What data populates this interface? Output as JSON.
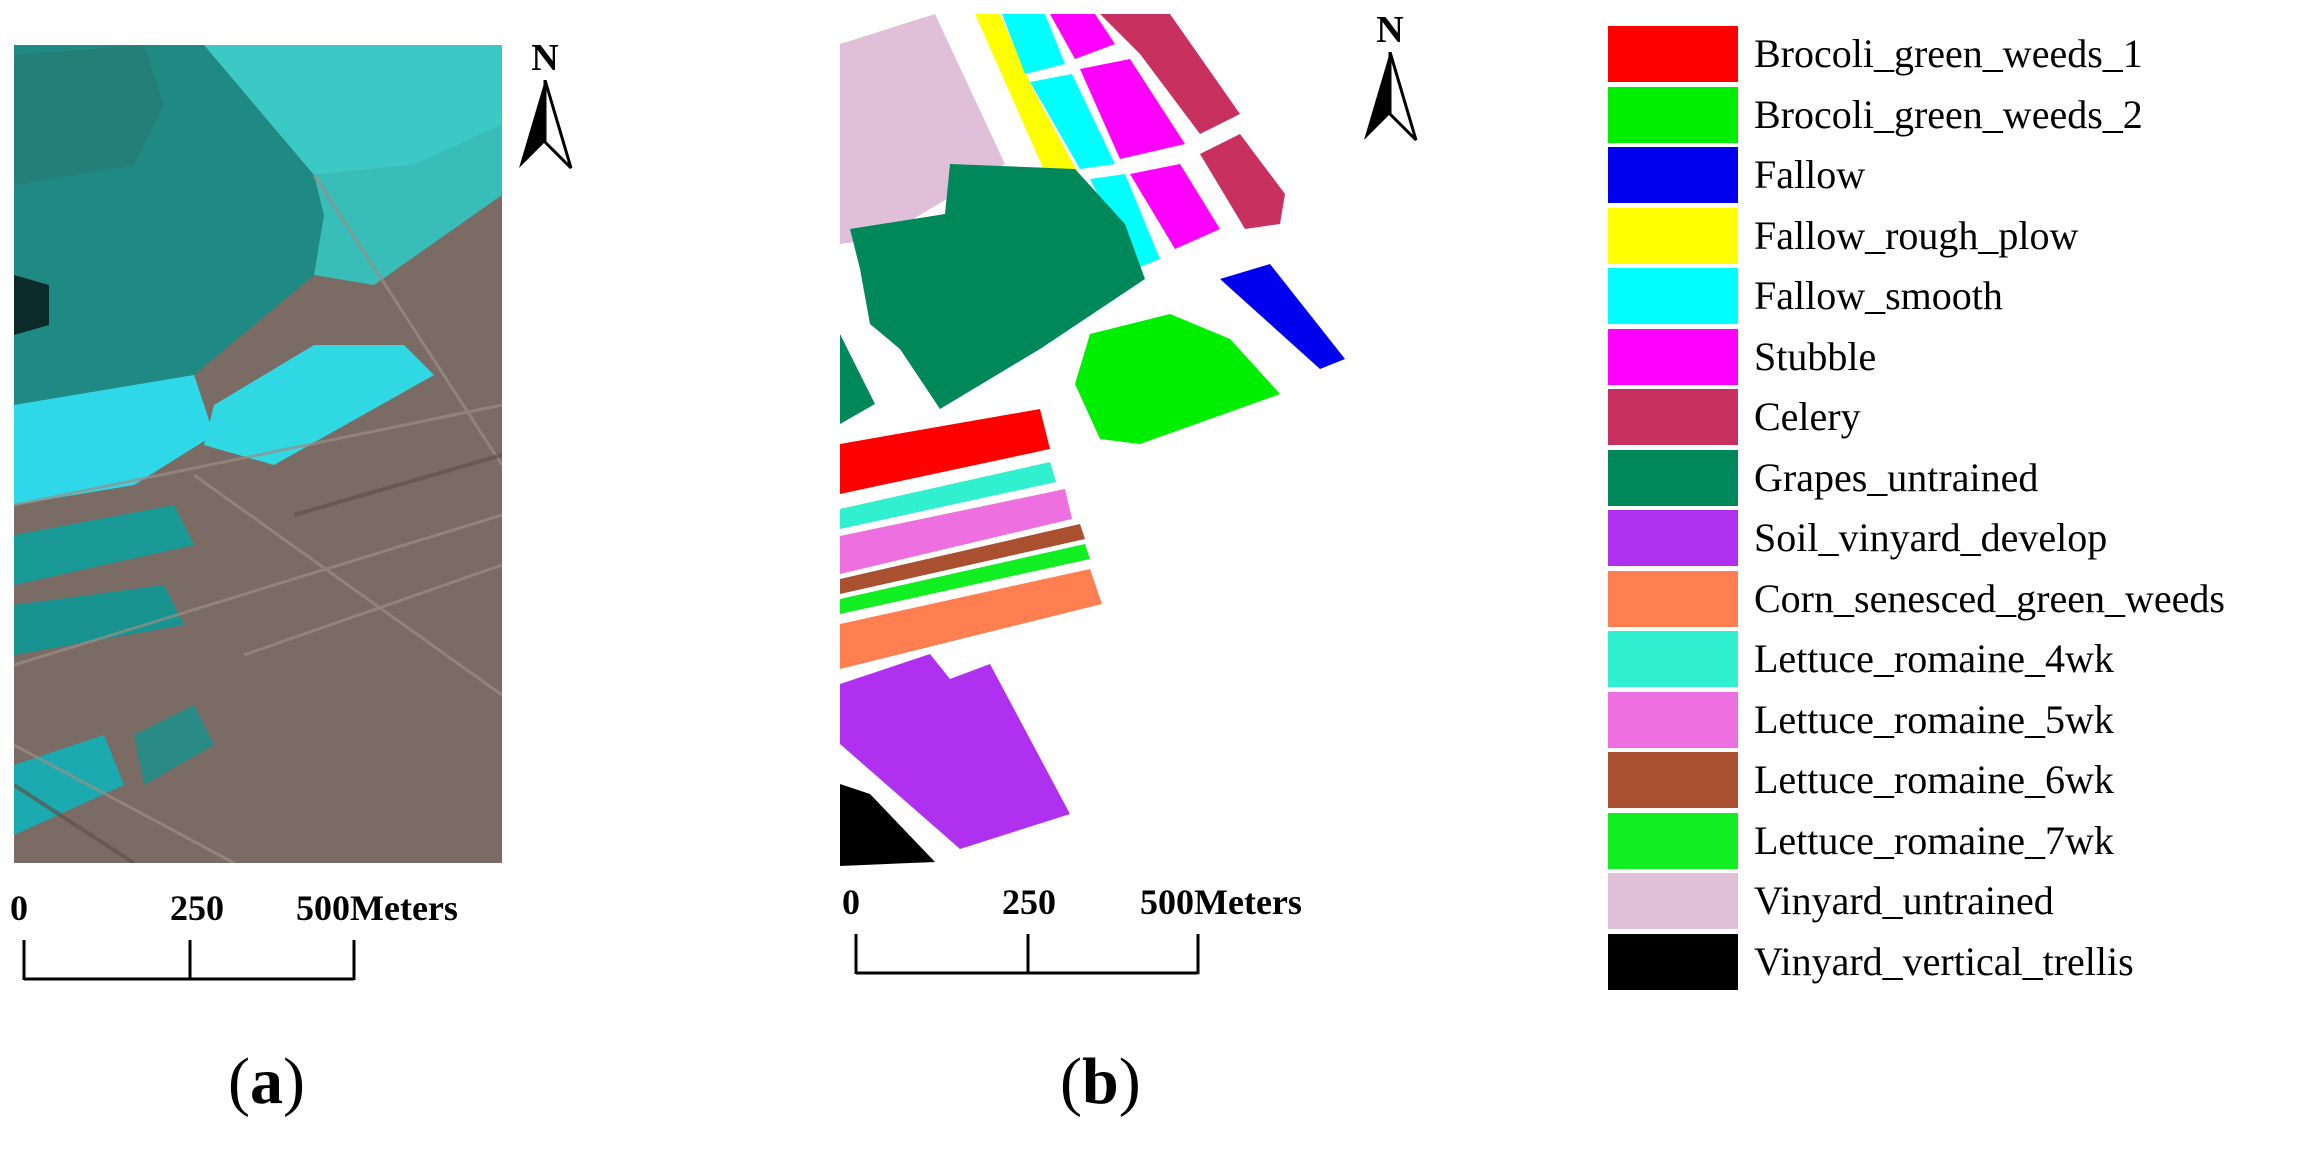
{
  "north_arrow_label": "N",
  "scale_bar": {
    "ticks": [
      "0",
      "250",
      "500Meters"
    ]
  },
  "panel_labels": {
    "a": "a",
    "b": "b"
  },
  "legend": {
    "items": [
      {
        "label": "Brocoli_green_weeds_1",
        "color": "#ff0000"
      },
      {
        "label": "Brocoli_green_weeds_2",
        "color": "#00ee00"
      },
      {
        "label": "Fallow",
        "color": "#0000ee"
      },
      {
        "label": "Fallow_rough_plow",
        "color": "#ffff00"
      },
      {
        "label": "Fallow_smooth",
        "color": "#00ffff"
      },
      {
        "label": "Stubble",
        "color": "#ff00ff"
      },
      {
        "label": "Celery",
        "color": "#c83060"
      },
      {
        "label": "Grapes_untrained",
        "color": "#00875a"
      },
      {
        "label": "Soil_vinyard_develop",
        "color": "#b030f0"
      },
      {
        "label": "Corn_senesced_green_weeds",
        "color": "#ff7f50"
      },
      {
        "label": "Lettuce_romaine_4wk",
        "color": "#30f0d0"
      },
      {
        "label": "Lettuce_romaine_5wk",
        "color": "#ee70e0"
      },
      {
        "label": "Lettuce_romaine_6wk",
        "color": "#a85030"
      },
      {
        "label": "Lettuce_romaine_7wk",
        "color": "#11ee22"
      },
      {
        "label": "Vinyard_untrained",
        "color": "#e0c0d8"
      },
      {
        "label": "Vinyard_vertical_trellis",
        "color": "#000000"
      }
    ]
  }
}
